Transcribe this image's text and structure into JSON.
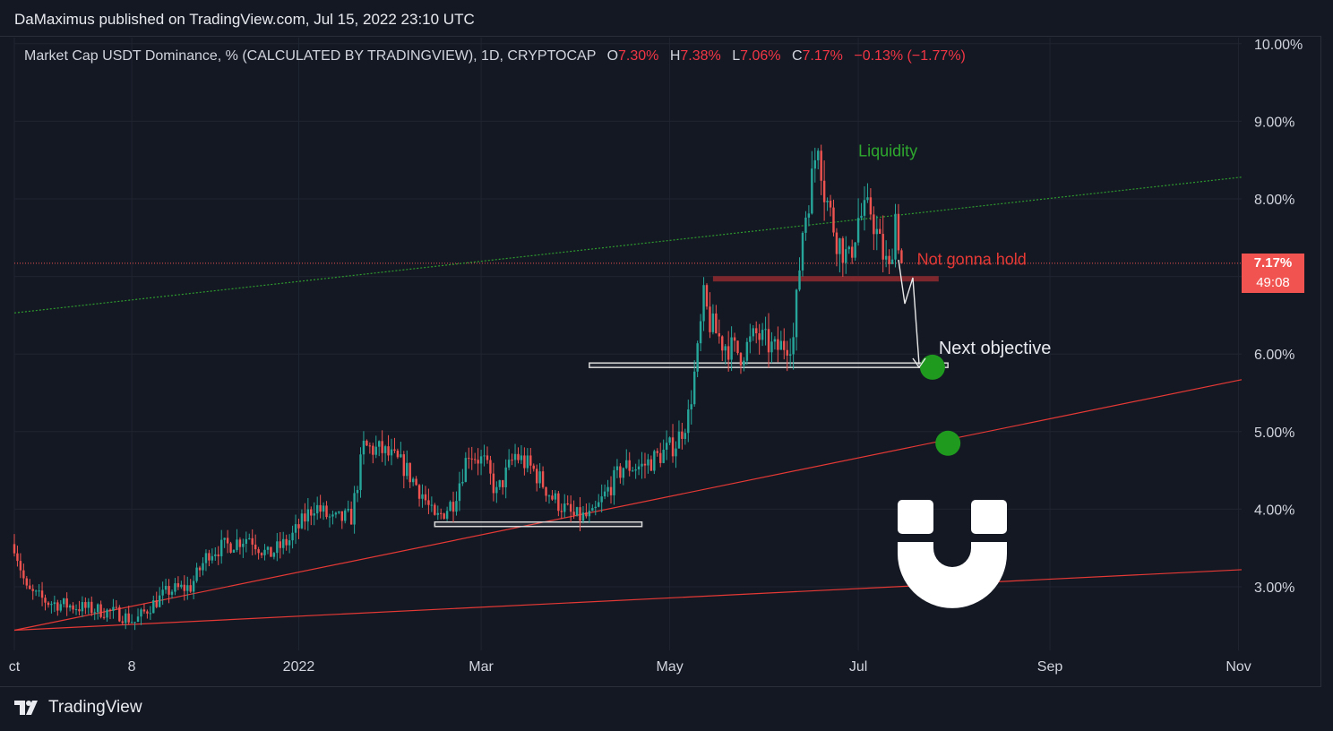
{
  "header": {
    "publisher": "DaMaximus published on TradingView.com, Jul 15, 2022 23:10 UTC"
  },
  "legend": {
    "symbol": "Market Cap USDT Dominance, % (CALCULATED BY TRADINGVIEW), 1D, CRYPTOCAP",
    "o_label": "O",
    "o_value": "7.30%",
    "h_label": "H",
    "h_value": "7.38%",
    "l_label": "L",
    "l_value": "7.06%",
    "c_label": "C",
    "c_value": "7.17%",
    "change": "−0.13% (−1.77%)"
  },
  "price_badge": {
    "price": "7.17%",
    "countdown": "49:08"
  },
  "footer": {
    "brand": "TradingView"
  },
  "colors": {
    "background": "#141823",
    "grid": "#1f2430",
    "up": "#26a69a",
    "down": "#ef5350",
    "trendline_red": "#e53935",
    "trendline_green": "#2e9b2e",
    "accent_text_green": "#2ea82e",
    "accent_text_red": "#e53935"
  },
  "chart_data": {
    "type": "candlestick",
    "title": "Market Cap USDT Dominance, % (CALCULATED BY TRADINGVIEW), 1D, CRYPTOCAP",
    "y_ticks": [
      "10.00%",
      "9.00%",
      "8.00%",
      "6.00%",
      "5.00%",
      "4.00%",
      "3.00%"
    ],
    "ylim": [
      2.4,
      10.1
    ],
    "x_ticks": [
      "ct",
      "8",
      "2022",
      "Mar",
      "May",
      "Jul",
      "Sep",
      "Nov"
    ],
    "x_tick_dates": [
      "2021-10-01",
      "2021-11-08",
      "2022-01-01",
      "2022-03-01",
      "2022-05-01",
      "2022-07-01",
      "2022-09-01",
      "2022-11-01"
    ],
    "close_path": [
      [
        "2021-10-01",
        3.55
      ],
      [
        "2021-10-05",
        2.95
      ],
      [
        "2021-10-12",
        2.8
      ],
      [
        "2021-10-20",
        2.75
      ],
      [
        "2021-10-28",
        2.7
      ],
      [
        "2021-11-04",
        2.65
      ],
      [
        "2021-11-09",
        2.55
      ],
      [
        "2021-11-14",
        2.75
      ],
      [
        "2021-11-20",
        2.95
      ],
      [
        "2021-11-27",
        3.0
      ],
      [
        "2021-12-03",
        3.45
      ],
      [
        "2021-12-10",
        3.55
      ],
      [
        "2021-12-16",
        3.65
      ],
      [
        "2021-12-22",
        3.4
      ],
      [
        "2021-12-29",
        3.6
      ],
      [
        "2022-01-06",
        4.05
      ],
      [
        "2022-01-12",
        3.85
      ],
      [
        "2022-01-18",
        3.9
      ],
      [
        "2022-01-22",
        4.8
      ],
      [
        "2022-01-28",
        4.75
      ],
      [
        "2022-02-04",
        4.55
      ],
      [
        "2022-02-10",
        4.2
      ],
      [
        "2022-02-14",
        3.85
      ],
      [
        "2022-02-20",
        4.1
      ],
      [
        "2022-02-25",
        4.75
      ],
      [
        "2022-03-02",
        4.6
      ],
      [
        "2022-03-06",
        4.2
      ],
      [
        "2022-03-12",
        4.7
      ],
      [
        "2022-03-18",
        4.5
      ],
      [
        "2022-03-24",
        4.15
      ],
      [
        "2022-03-31",
        3.9
      ],
      [
        "2022-04-06",
        3.9
      ],
      [
        "2022-04-11",
        4.25
      ],
      [
        "2022-04-16",
        4.55
      ],
      [
        "2022-04-22",
        4.55
      ],
      [
        "2022-04-28",
        4.7
      ],
      [
        "2022-05-03",
        4.85
      ],
      [
        "2022-05-07",
        5.2
      ],
      [
        "2022-05-10",
        6.0
      ],
      [
        "2022-05-12",
        6.7
      ],
      [
        "2022-05-14",
        6.4
      ],
      [
        "2022-05-18",
        6.15
      ],
      [
        "2022-05-24",
        6.0
      ],
      [
        "2022-05-29",
        6.25
      ],
      [
        "2022-06-04",
        6.05
      ],
      [
        "2022-06-10",
        6.2
      ],
      [
        "2022-06-13",
        7.6
      ],
      [
        "2022-06-16",
        8.25
      ],
      [
        "2022-06-18",
        8.8
      ],
      [
        "2022-06-20",
        8.1
      ],
      [
        "2022-06-24",
        7.5
      ],
      [
        "2022-06-28",
        7.2
      ],
      [
        "2022-07-01",
        7.75
      ],
      [
        "2022-07-05",
        7.85
      ],
      [
        "2022-07-08",
        7.4
      ],
      [
        "2022-07-11",
        7.05
      ],
      [
        "2022-07-13",
        7.8
      ],
      [
        "2022-07-15",
        7.17
      ]
    ],
    "trendlines": [
      {
        "color": "red",
        "from": [
          "2021-10-01",
          2.44
        ],
        "to": [
          "2022-11-02",
          5.67
        ]
      },
      {
        "color": "red",
        "from": [
          "2021-10-01",
          2.44
        ],
        "to": [
          "2022-11-02",
          3.22
        ]
      },
      {
        "color": "green",
        "style": "dotted",
        "from": [
          "2021-10-01",
          6.53
        ],
        "to": [
          "2022-11-02",
          8.28
        ]
      }
    ],
    "zones": [
      {
        "color": "white",
        "from": "2022-02-14",
        "to": "2022-04-22",
        "y": 3.8
      },
      {
        "color": "white",
        "from": "2022-04-05",
        "to": "2022-07-30",
        "y": 5.85
      },
      {
        "color": "red",
        "from": "2022-05-15",
        "to": "2022-07-27",
        "y": 6.97
      }
    ],
    "targets": [
      [
        "2022-07-25",
        5.83
      ],
      [
        "2022-07-30",
        4.85
      ]
    ],
    "current_price_line": 7.17,
    "annotations": [
      {
        "text": "Liquidity",
        "date": "2022-07-01",
        "y": 8.55,
        "color": "green"
      },
      {
        "text": "Not gonna hold",
        "date": "2022-07-20",
        "y": 7.15,
        "color": "red"
      },
      {
        "text": "Next objective",
        "date": "2022-07-27",
        "y": 6.0,
        "color": "white"
      }
    ]
  }
}
